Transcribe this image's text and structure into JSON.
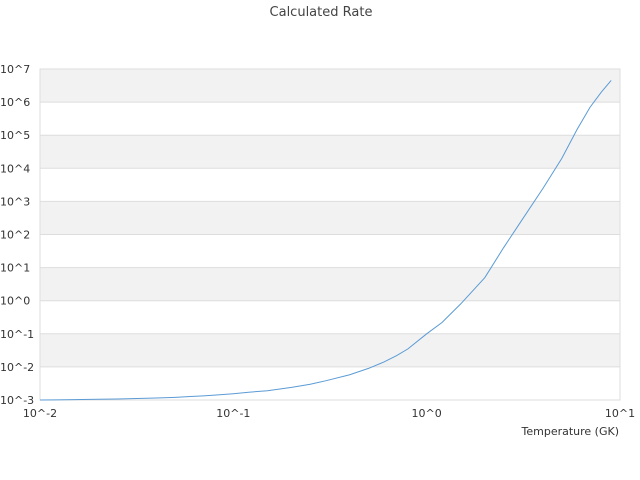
{
  "chart_data": {
    "type": "line",
    "title": "Calculated Rate",
    "xlabel": "Temperature (GK)",
    "ylabel": "",
    "x_scale": "log",
    "y_scale": "log",
    "xlim": [
      0.01,
      10
    ],
    "ylim": [
      0.001,
      10000000
    ],
    "x_tick_labels": [
      "10^-2",
      "10^-1",
      "10^0",
      "10^1"
    ],
    "y_tick_labels": [
      "10^-3",
      "10^-2",
      "10^-1",
      "10^0",
      "10^1",
      "10^2",
      "10^3",
      "10^4",
      "10^5",
      "10^6",
      "10^7"
    ],
    "grid": "alternating horizontal bands",
    "legend": "none",
    "line_color": "#5b9bd5",
    "band_color": "#f2f2f2",
    "series": [
      {
        "x": [
          0.01,
          0.012,
          0.015,
          0.02,
          0.025,
          0.03,
          0.04,
          0.05,
          0.06,
          0.07,
          0.08,
          0.1,
          0.12,
          0.15,
          0.2,
          0.25,
          0.3,
          0.4,
          0.5,
          0.6,
          0.7,
          0.8,
          1.0,
          1.2,
          1.5,
          2.0,
          2.5,
          3.0,
          4.0,
          5.0,
          6.0,
          7.0,
          8.0,
          9.0
        ],
        "y": [
          0.001,
          0.00101,
          0.00103,
          0.00105,
          0.00107,
          0.0011,
          0.00115,
          0.0012,
          0.00127,
          0.00133,
          0.0014,
          0.00155,
          0.00172,
          0.0019,
          0.0024,
          0.003,
          0.0038,
          0.0058,
          0.009,
          0.014,
          0.022,
          0.035,
          0.1,
          0.22,
          0.8,
          5.0,
          40,
          200,
          2500,
          20000,
          150000,
          700000,
          2000000,
          4500000
        ]
      }
    ]
  }
}
